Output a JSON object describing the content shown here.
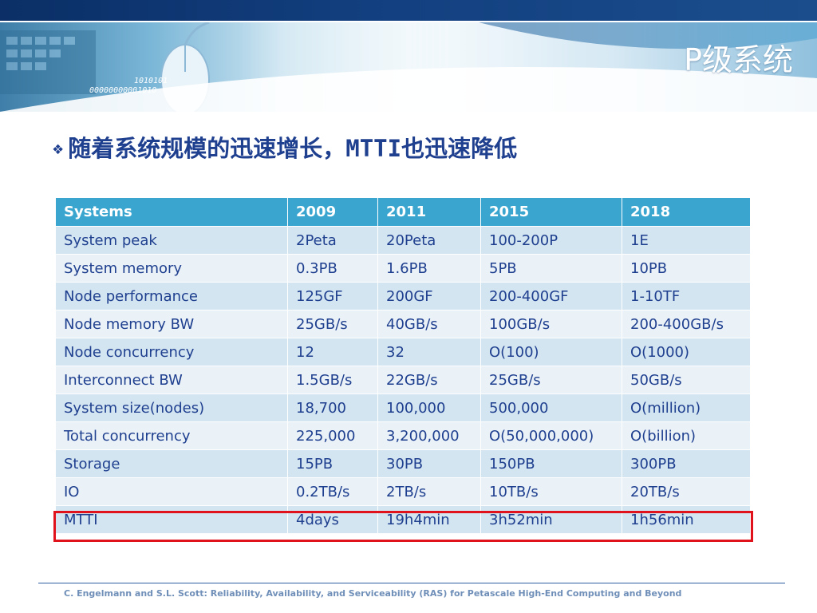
{
  "slide": {
    "title": "P级系统",
    "bullet_mark": "❖",
    "bullet_text": "随着系统规模的迅速增长，MTTI也迅速降低",
    "banner_binary_1": "1010101",
    "banner_binary_2": "00000000001010"
  },
  "table": {
    "headers": [
      "Systems",
      "2009",
      "2011",
      "2015",
      "2018"
    ],
    "rows": [
      [
        "System peak",
        "2Peta",
        "20Peta",
        "100-200P",
        "1E"
      ],
      [
        "System memory",
        "0.3PB",
        "1.6PB",
        "5PB",
        "10PB"
      ],
      [
        "Node performance",
        "125GF",
        "200GF",
        "200-400GF",
        "1-10TF"
      ],
      [
        "Node memory BW",
        "25GB/s",
        "40GB/s",
        "100GB/s",
        "200-400GB/s"
      ],
      [
        "Node concurrency",
        "12",
        "32",
        "O(100)",
        "O(1000)"
      ],
      [
        "Interconnect BW",
        "1.5GB/s",
        "22GB/s",
        "25GB/s",
        "50GB/s"
      ],
      [
        "System size(nodes)",
        "18,700",
        "100,000",
        "500,000",
        "O(million)"
      ],
      [
        "Total concurrency",
        "225,000",
        "3,200,000",
        "O(50,000,000)",
        "O(billion)"
      ],
      [
        "Storage",
        "15PB",
        "30PB",
        "150PB",
        "300PB"
      ],
      [
        "IO",
        "0.2TB/s",
        "2TB/s",
        "10TB/s",
        "20TB/s"
      ],
      [
        "MTTI",
        "4days",
        "19h4min",
        "3h52min",
        "1h56min"
      ]
    ]
  },
  "footer": {
    "text": "C. Engelmann and S.L. Scott: Reliability, Availability, and Serviceability (RAS) for Petascale High-End Computing and Beyond"
  },
  "colors": {
    "header_bg": "#3aa6cf",
    "row_odd": "#d3e5f1",
    "row_even": "#eaf2f8",
    "text": "#1f3f8f",
    "highlight": "#e0131c"
  }
}
